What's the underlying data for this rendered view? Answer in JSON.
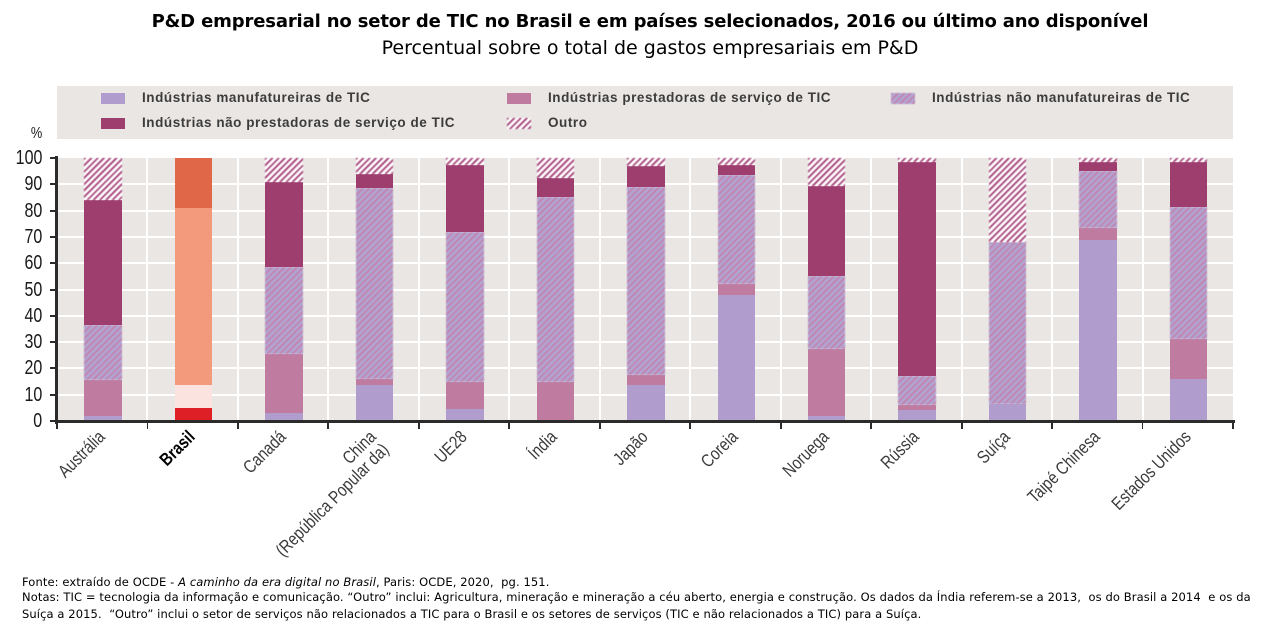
{
  "title": "P&D empresarial no setor de TIC no Brasil e em países selecionados, 2016 ou último ano disponível",
  "subtitle": "Percentual sobre o total de gastos empresariais em P&D",
  "chart_data": {
    "type": "bar",
    "variant": "stacked-percent",
    "title": "P&D empresarial no setor de TIC no Brasil e em países selecionados, 2016 ou último ano disponível",
    "subtitle": "Percentual sobre o total de gastos empresariais em P&D",
    "ylabel": "%",
    "ylim": [
      0,
      100
    ],
    "ytick_step": 10,
    "grid": true,
    "legend_position": "top",
    "categories": [
      "Austrália",
      "Brasil",
      "Canadá",
      "China\n(República Popular da)",
      "UE28",
      "Índia",
      "Japão",
      "Coreia",
      "Noruega",
      "Rússia",
      "Suíça",
      "Taipé Chinesa",
      "Estados Unidos"
    ],
    "highlight_category": "Brasil",
    "series": [
      {
        "name": "Indústrias manufatureiras de TIC",
        "pattern": "solid",
        "color": "#b19cce",
        "highlight_color": "#de1f26",
        "values": [
          2,
          4.8,
          3,
          13.5,
          4.5,
          0,
          13.5,
          48,
          2,
          4,
          6.5,
          69,
          16
        ]
      },
      {
        "name": "Indústrias prestadoras de serviço de TIC",
        "pattern": "solid",
        "color": "#c07ba0",
        "highlight_color": "#fbe4df",
        "values": [
          13.5,
          8.9,
          22.5,
          2.5,
          10.5,
          15,
          4,
          4,
          25.5,
          2,
          0,
          4.5,
          15
        ]
      },
      {
        "name": "Indústrias não manufatureiras de TIC",
        "pattern": "hatch",
        "color": "#b2a4d3",
        "stripe_color": "#c57ba2",
        "highlight_color": "#f49a7c",
        "values": [
          21,
          67.3,
          33,
          72.5,
          57,
          70,
          71.5,
          41.5,
          27.5,
          11,
          61.5,
          21.5,
          50.5
        ]
      },
      {
        "name": "Indústrias não prestadoras de serviço de TIC",
        "pattern": "solid",
        "color": "#9d3e6f",
        "highlight_color": "#e16749",
        "values": [
          47.5,
          19,
          32.5,
          5.5,
          25.5,
          7.5,
          8,
          4,
          34.5,
          81.5,
          0,
          3.5,
          17
        ]
      },
      {
        "name": "Outro",
        "pattern": "hatch",
        "color": "#ffffff",
        "stripe_color": "#a23a73",
        "highlight_color": "#e16749",
        "values": [
          16,
          0,
          9,
          6,
          2.5,
          7.5,
          3,
          2.5,
          10.5,
          1.5,
          32,
          1.5,
          1.5
        ]
      }
    ],
    "legend_rows": [
      [
        0,
        1,
        2
      ],
      [
        3,
        4
      ]
    ]
  },
  "footer": {
    "fonte_prefix": "Fonte: extraído de OCDE - ",
    "fonte_italic": "A caminho da era digital no Brasil",
    "fonte_suffix": ", Paris: OCDE, 2020,  pg. 151.",
    "notas_line1": "Notas: TIC = tecnologia da informação e comunicação. “Outro” inclui: Agricultura, mineração e mineração a céu aberto, energia e construção. Os dados da Índia referem-se a 2013,  os do Brasil a 2014  e os da",
    "notas_line2": "Suíça a 2015.  “Outro” inclui o setor de serviços não relacionados a TIC para o Brasil e os setores de serviços (TIC e não relacionados a TIC) para a Suíça."
  }
}
